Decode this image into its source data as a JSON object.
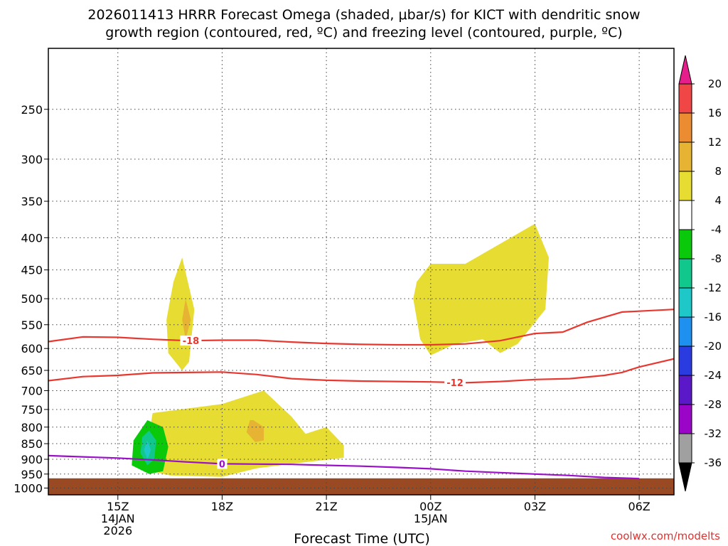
{
  "chart_data": {
    "type": "time-height cross-section",
    "title_line1": "2026011413 HRRR Forecast Omega (shaded, μbar/s) for KICT with dendritic snow",
    "title_line2": "growth region (contoured, red, ºC) and freezing level (contoured, purple, ºC)",
    "xlabel": "Forecast Time (UTC)",
    "ylabel": "",
    "credit": "coolwx.com/modelts",
    "x_range_hours": [
      13,
      31
    ],
    "x_ticks": [
      {
        "hour": 15,
        "l1": "15Z",
        "l2": "14JAN",
        "l3": "2026"
      },
      {
        "hour": 18,
        "l1": "18Z"
      },
      {
        "hour": 21,
        "l1": "21Z"
      },
      {
        "hour": 24,
        "l1": "00Z",
        "l2": "15JAN"
      },
      {
        "hour": 27,
        "l1": "03Z"
      },
      {
        "hour": 30,
        "l1": "06Z"
      }
    ],
    "y_axis_hPa": {
      "top": 200,
      "bottom": 1025,
      "scale": "log"
    },
    "y_ticks": [
      250,
      300,
      350,
      400,
      450,
      500,
      550,
      600,
      650,
      700,
      750,
      800,
      850,
      900,
      950,
      1000
    ],
    "ground_level_hPa": 965,
    "colorbar": [
      {
        "label": "-36",
        "color": "#000000"
      },
      {
        "label": "-32",
        "color": "#a0a0a0"
      },
      {
        "label": "-28",
        "color": "#9b05c8"
      },
      {
        "label": "-24",
        "color": "#5a18c8"
      },
      {
        "label": "-20",
        "color": "#2a3ce0"
      },
      {
        "label": "-16",
        "color": "#1e90f0"
      },
      {
        "label": "-12",
        "color": "#1ec8c8"
      },
      {
        "label": "-8",
        "color": "#10c88c"
      },
      {
        "label": "-4",
        "color": "#0ac80a"
      },
      {
        "label": "4",
        "color": "#ffffff"
      },
      {
        "label": "8",
        "color": "#e6dc32"
      },
      {
        "label": "12",
        "color": "#e6b432"
      },
      {
        "label": "16",
        "color": "#ec8c32"
      },
      {
        "label": "20",
        "color": "#f04646"
      },
      {
        "label": "",
        "color": "#e61e8c"
      }
    ],
    "shaded_regions": [
      {
        "value_class": "4 to 8",
        "color": "#e6dc32",
        "points": [
          [
            16.85,
            430
          ],
          [
            17.2,
            520
          ],
          [
            17.05,
            630
          ],
          [
            16.85,
            650
          ],
          [
            16.45,
            610
          ],
          [
            16.4,
            540
          ],
          [
            16.6,
            470
          ]
        ]
      },
      {
        "value_class": "8 to 12",
        "color": "#e6b432",
        "points": [
          [
            16.95,
            500
          ],
          [
            17.1,
            540
          ],
          [
            16.95,
            580
          ],
          [
            16.85,
            540
          ]
        ]
      },
      {
        "value_class": "4 to 8",
        "color": "#e6dc32",
        "points": [
          [
            16.0,
            760
          ],
          [
            18.0,
            735
          ],
          [
            19.2,
            700
          ],
          [
            20.0,
            770
          ],
          [
            20.4,
            820
          ],
          [
            21.0,
            800
          ],
          [
            21.5,
            855
          ],
          [
            21.5,
            895
          ],
          [
            20.0,
            915
          ],
          [
            19.0,
            930
          ],
          [
            18.0,
            960
          ],
          [
            16.5,
            955
          ],
          [
            15.6,
            930
          ],
          [
            15.7,
            880
          ],
          [
            15.9,
            840
          ],
          [
            15.95,
            790
          ]
        ]
      },
      {
        "value_class": "8 to 12",
        "color": "#e6b432",
        "points": [
          [
            18.9,
            780
          ],
          [
            19.2,
            800
          ],
          [
            19.2,
            840
          ],
          [
            18.95,
            845
          ],
          [
            18.7,
            815
          ],
          [
            18.8,
            780
          ]
        ]
      },
      {
        "value_class": "-8 to -4",
        "color": "#0ac80a",
        "points": [
          [
            15.85,
            780
          ],
          [
            16.3,
            800
          ],
          [
            16.45,
            860
          ],
          [
            16.3,
            940
          ],
          [
            15.9,
            950
          ],
          [
            15.4,
            920
          ],
          [
            15.45,
            840
          ]
        ]
      },
      {
        "value_class": "-12 to -8",
        "color": "#10c88c",
        "points": [
          [
            15.9,
            810
          ],
          [
            16.1,
            840
          ],
          [
            16.05,
            900
          ],
          [
            15.85,
            920
          ],
          [
            15.65,
            880
          ],
          [
            15.7,
            830
          ]
        ]
      },
      {
        "value_class": "-16 to -12",
        "color": "#1ec8c8",
        "points": [
          [
            15.85,
            840
          ],
          [
            15.95,
            870
          ],
          [
            15.85,
            900
          ],
          [
            15.75,
            870
          ]
        ]
      },
      {
        "value_class": "4 to 8",
        "color": "#e6dc32",
        "points": [
          [
            24.0,
            440
          ],
          [
            25.0,
            440
          ],
          [
            27.0,
            380
          ],
          [
            27.4,
            430
          ],
          [
            27.3,
            520
          ],
          [
            26.5,
            590
          ],
          [
            26.0,
            610
          ],
          [
            25.5,
            580
          ],
          [
            24.7,
            590
          ],
          [
            24.0,
            615
          ],
          [
            23.7,
            580
          ],
          [
            23.5,
            500
          ],
          [
            23.6,
            470
          ]
        ]
      }
    ],
    "contours": [
      {
        "name": "-18 °C isotherm",
        "label": "-18",
        "color": "#e8372f",
        "label_at_hour": 17.1,
        "points": [
          [
            13,
            585
          ],
          [
            14,
            575
          ],
          [
            15,
            576
          ],
          [
            16,
            580
          ],
          [
            17,
            583
          ],
          [
            18,
            582
          ],
          [
            19,
            582
          ],
          [
            20,
            586
          ],
          [
            21,
            589
          ],
          [
            22,
            591
          ],
          [
            23,
            592
          ],
          [
            24,
            592
          ],
          [
            25,
            590
          ],
          [
            26,
            583
          ],
          [
            27,
            568
          ],
          [
            27.8,
            565
          ],
          [
            28.5,
            545
          ],
          [
            29.5,
            525
          ],
          [
            31,
            520
          ]
        ]
      },
      {
        "name": "-12 °C isotherm",
        "label": "-12",
        "color": "#e8372f",
        "label_at_hour": 24.7,
        "points": [
          [
            13,
            675
          ],
          [
            14,
            665
          ],
          [
            15,
            662
          ],
          [
            16,
            656
          ],
          [
            17,
            655
          ],
          [
            18,
            654
          ],
          [
            19,
            660
          ],
          [
            20,
            670
          ],
          [
            21,
            674
          ],
          [
            22,
            676
          ],
          [
            23,
            677
          ],
          [
            24,
            678
          ],
          [
            25,
            680
          ],
          [
            26,
            677
          ],
          [
            27,
            672
          ],
          [
            28,
            670
          ],
          [
            29,
            662
          ],
          [
            29.5,
            655
          ],
          [
            30,
            642
          ],
          [
            31,
            623
          ]
        ]
      },
      {
        "name": "0 °C freezing level",
        "label": "0",
        "color": "#9a10c8",
        "label_at_hour": 18.0,
        "points": [
          [
            13,
            888
          ],
          [
            14,
            892
          ],
          [
            15,
            896
          ],
          [
            16,
            902
          ],
          [
            17,
            909
          ],
          [
            18,
            915
          ],
          [
            19,
            916
          ],
          [
            20,
            917
          ],
          [
            21,
            920
          ],
          [
            22,
            923
          ],
          [
            23,
            927
          ],
          [
            24,
            932
          ],
          [
            25,
            940
          ],
          [
            26,
            945
          ],
          [
            27,
            950
          ],
          [
            28,
            955
          ],
          [
            29,
            962
          ],
          [
            30,
            966
          ]
        ]
      }
    ]
  }
}
